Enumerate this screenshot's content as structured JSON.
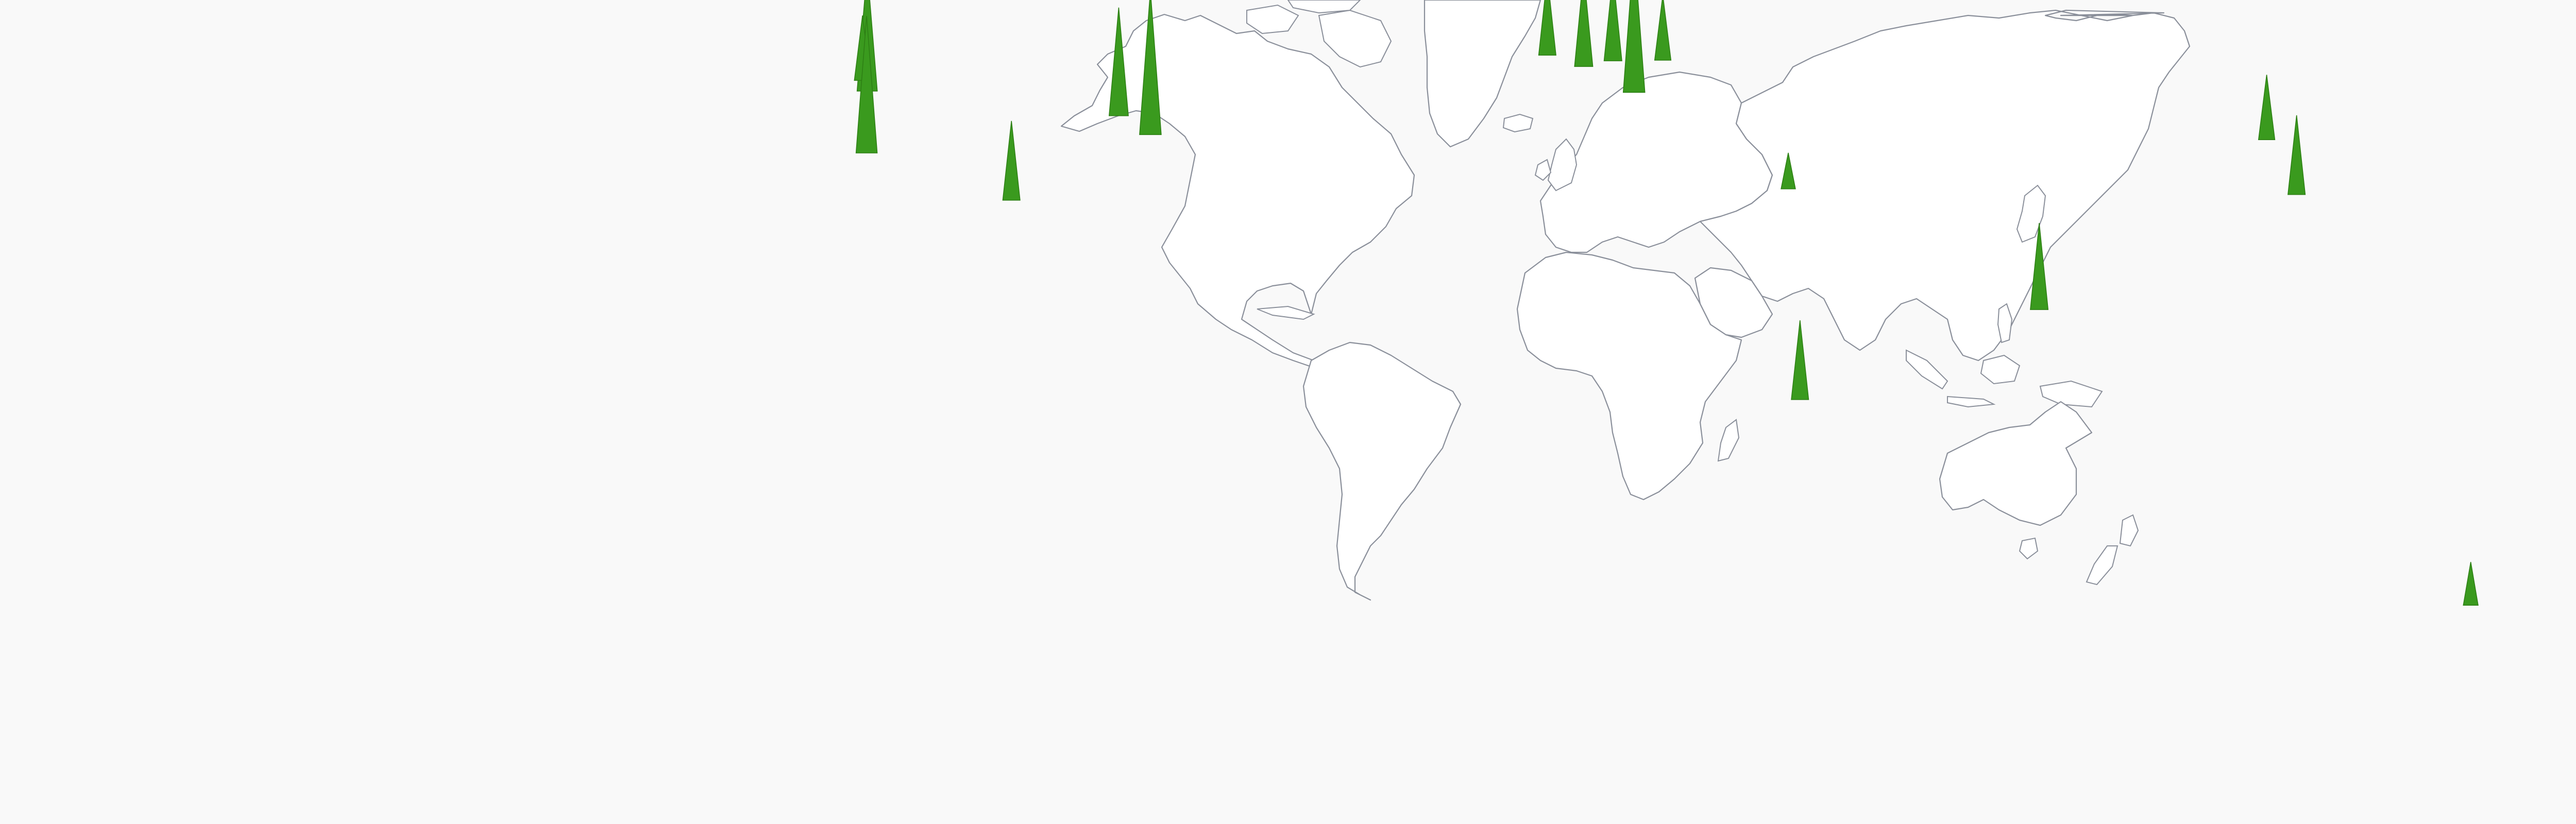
{
  "map": {
    "type": "spike-map",
    "ocean_color": "#f9f9f9",
    "land_color": "#ffffff",
    "border_color": "#8a8f9a",
    "spike_color": "#3a9a1e",
    "spike_outline": "#2d7f14"
  },
  "markers": [
    {
      "name": "seattle",
      "lon": -122.3,
      "lat": 47.6,
      "value": 0.85
    },
    {
      "name": "vancouver",
      "lon": -123.1,
      "lat": 49.3,
      "value": 0.45
    },
    {
      "name": "san-francisco",
      "lon": -122.4,
      "lat": 37.8,
      "value": 0.95
    },
    {
      "name": "austin",
      "lon": -97.7,
      "lat": 30.3,
      "value": 0.55
    },
    {
      "name": "toronto",
      "lon": -79.4,
      "lat": 43.7,
      "value": 0.75
    },
    {
      "name": "new-york",
      "lon": -74.0,
      "lat": 40.7,
      "value": 1.0
    },
    {
      "name": "dublin",
      "lon": -6.3,
      "lat": 53.3,
      "value": 0.55
    },
    {
      "name": "london",
      "lon": -0.1,
      "lat": 51.5,
      "value": 0.65
    },
    {
      "name": "amsterdam",
      "lon": 4.9,
      "lat": 52.4,
      "value": 0.6
    },
    {
      "name": "berlin",
      "lon": 13.4,
      "lat": 52.5,
      "value": 0.45
    },
    {
      "name": "zurich",
      "lon": 8.5,
      "lat": 47.4,
      "value": 1.0
    },
    {
      "name": "tel-aviv",
      "lon": 34.8,
      "lat": 32.1,
      "value": 0.25
    },
    {
      "name": "nairobi",
      "lon": 36.8,
      "lat": -1.3,
      "value": 0.55
    },
    {
      "name": "bangalore",
      "lon": 77.6,
      "lat": 12.97,
      "value": 0.6
    },
    {
      "name": "beijing",
      "lon": 116.4,
      "lat": 39.9,
      "value": 0.45
    },
    {
      "name": "shanghai",
      "lon": 121.5,
      "lat": 31.2,
      "value": 0.55
    },
    {
      "name": "sydney",
      "lon": 151.2,
      "lat": -33.9,
      "value": 0.3
    }
  ]
}
